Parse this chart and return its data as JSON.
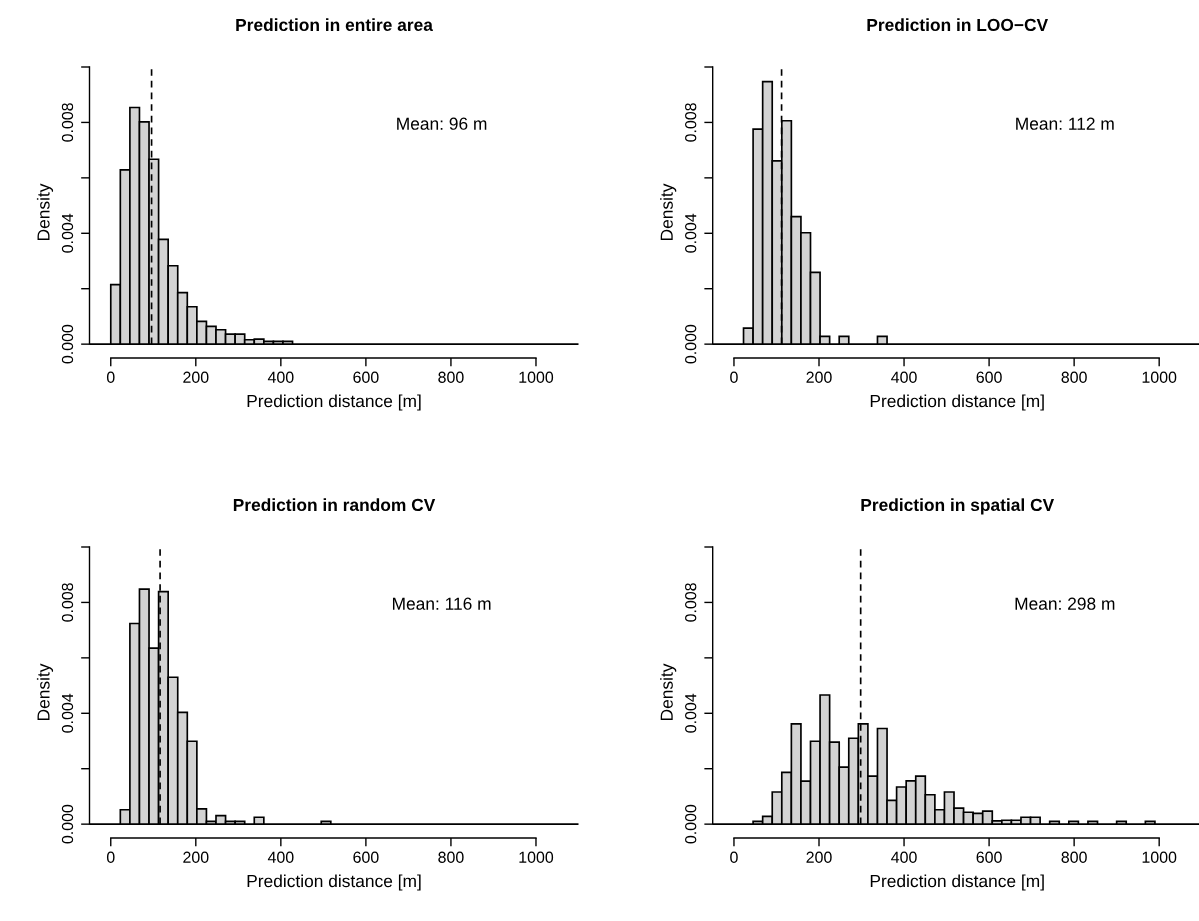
{
  "chart_data": [
    {
      "type": "histogram",
      "title": "Prediction in entire area",
      "xlabel": "Prediction distance [m]",
      "ylabel": "Density",
      "color": "#d3d3d3",
      "bins": [
        0,
        22.5,
        45,
        67.5,
        90,
        112.5,
        135,
        157.5,
        180,
        202.5,
        225,
        247.5,
        270,
        292.5,
        315,
        337.5,
        360,
        382.5,
        405,
        427.5
      ],
      "values": [
        0.00215,
        0.00629,
        0.00854,
        0.00802,
        0.00667,
        0.00378,
        0.00283,
        0.00186,
        0.00135,
        0.00082,
        0.00064,
        0.00052,
        0.00036,
        0.00036,
        0.00016,
        0.00018,
        0.0001,
        0.0001,
        0.0001
      ],
      "xlim": [
        -50,
        1100
      ],
      "xticks": [
        0,
        200,
        400,
        600,
        800,
        1000
      ],
      "ylim": [
        -0.0005,
        0.01
      ],
      "yticks": [
        {
          "value": 0,
          "label": "0.000"
        },
        {
          "value": 0.002,
          "label": null
        },
        {
          "value": 0.004,
          "label": "0.004"
        },
        {
          "value": 0.006,
          "label": null
        },
        {
          "value": 0.008,
          "label": "0.008"
        },
        {
          "value": 0.01,
          "label": null
        }
      ],
      "ref_lines": [
        {
          "axis": "x",
          "value": 96,
          "line_style": "dashed"
        },
        {
          "axis": "y",
          "value": 0,
          "line_style": "solid"
        }
      ],
      "annotations": [
        "Mean: 96 m"
      ]
    },
    {
      "type": "histogram",
      "title": "Prediction in LOO−CV",
      "xlabel": "Prediction distance [m]",
      "ylabel": "Density",
      "color": "#d3d3d3",
      "bins": [
        0,
        22.5,
        45,
        67.5,
        90,
        112.5,
        135,
        157.5,
        180,
        202.5,
        225,
        247.5,
        270,
        292.5,
        315,
        337.5,
        360
      ],
      "values": [
        0,
        0.00058,
        0.00776,
        0.00947,
        0.00661,
        0.00806,
        0.0046,
        0.00402,
        0.00259,
        0.00028,
        0,
        0.00028,
        0,
        0,
        0,
        0.00028
      ],
      "xlim": [
        -50,
        1100
      ],
      "xticks": [
        0,
        200,
        400,
        600,
        800,
        1000
      ],
      "ylim": [
        -0.0005,
        0.01
      ],
      "yticks": [
        {
          "value": 0,
          "label": "0.000"
        },
        {
          "value": 0.002,
          "label": null
        },
        {
          "value": 0.004,
          "label": "0.004"
        },
        {
          "value": 0.006,
          "label": null
        },
        {
          "value": 0.008,
          "label": "0.008"
        },
        {
          "value": 0.01,
          "label": null
        }
      ],
      "ref_lines": [
        {
          "axis": "x",
          "value": 112,
          "line_style": "dashed"
        },
        {
          "axis": "y",
          "value": 0,
          "line_style": "solid"
        }
      ],
      "annotations": [
        "Mean: 112 m"
      ]
    },
    {
      "type": "histogram",
      "title": "Prediction in random CV",
      "xlabel": "Prediction distance [m]",
      "ylabel": "Density",
      "color": "#d3d3d3",
      "bins": [
        0,
        22.5,
        45,
        67.5,
        90,
        112.5,
        135,
        157.5,
        180,
        202.5,
        225,
        247.5,
        270,
        292.5,
        315,
        337.5,
        360,
        382.5,
        405,
        427.5,
        450,
        472.5,
        495,
        517.5
      ],
      "values": [
        0,
        0.00052,
        0.00724,
        0.00848,
        0.00635,
        0.00839,
        0.0053,
        0.00403,
        0.00299,
        0.00055,
        0.0001,
        0.00031,
        0.0001,
        0.0001,
        0,
        0.00025,
        0,
        0,
        0,
        0,
        0,
        0,
        0.0001
      ],
      "xlim": [
        -50,
        1100
      ],
      "xticks": [
        0,
        200,
        400,
        600,
        800,
        1000
      ],
      "ylim": [
        -0.0005,
        0.01
      ],
      "yticks": [
        {
          "value": 0,
          "label": "0.000"
        },
        {
          "value": 0.002,
          "label": null
        },
        {
          "value": 0.004,
          "label": "0.004"
        },
        {
          "value": 0.006,
          "label": null
        },
        {
          "value": 0.008,
          "label": "0.008"
        },
        {
          "value": 0.01,
          "label": null
        }
      ],
      "ref_lines": [
        {
          "axis": "x",
          "value": 116,
          "line_style": "dashed"
        },
        {
          "axis": "y",
          "value": 0,
          "line_style": "solid"
        }
      ],
      "annotations": [
        "Mean: 116 m"
      ]
    },
    {
      "type": "histogram",
      "title": "Prediction in spatial CV",
      "xlabel": "Prediction distance [m]",
      "ylabel": "Density",
      "color": "#d3d3d3",
      "bins": [
        0,
        22.5,
        45,
        67.5,
        90,
        112.5,
        135,
        157.5,
        180,
        202.5,
        225,
        247.5,
        270,
        292.5,
        315,
        337.5,
        360,
        382.5,
        405,
        427.5,
        450,
        472.5,
        495,
        517.5,
        540,
        562.5,
        585,
        607.5,
        630,
        652.5,
        675,
        697.5,
        720,
        742.5,
        765,
        787.5,
        810,
        832.5,
        855,
        877.5,
        900,
        922.5,
        945,
        967.5,
        990
      ],
      "values": [
        0,
        0,
        0.0001,
        0.00028,
        0.00116,
        0.00187,
        0.00362,
        0.00155,
        0.00299,
        0.00466,
        0.00296,
        0.00206,
        0.0031,
        0.00362,
        0.00173,
        0.00345,
        0.00086,
        0.00134,
        0.00156,
        0.00173,
        0.00106,
        0.00052,
        0.00116,
        0.00058,
        0.00043,
        0.00039,
        0.00047,
        0.00012,
        0.00014,
        0.00014,
        0.00025,
        0.00025,
        0,
        0.0001,
        0,
        0.0001,
        0,
        0.0001,
        0,
        0,
        0.0001,
        0,
        0,
        0.0001
      ],
      "xlim": [
        -50,
        1100
      ],
      "xticks": [
        0,
        200,
        400,
        600,
        800,
        1000
      ],
      "ylim": [
        -0.0005,
        0.01
      ],
      "yticks": [
        {
          "value": 0,
          "label": "0.000"
        },
        {
          "value": 0.002,
          "label": null
        },
        {
          "value": 0.004,
          "label": "0.004"
        },
        {
          "value": 0.006,
          "label": null
        },
        {
          "value": 0.008,
          "label": "0.008"
        },
        {
          "value": 0.01,
          "label": null
        }
      ],
      "ref_lines": [
        {
          "axis": "x",
          "value": 298,
          "line_style": "dashed"
        },
        {
          "axis": "y",
          "value": 0,
          "line_style": "solid"
        }
      ],
      "annotations": [
        "Mean: 298 m"
      ]
    }
  ]
}
